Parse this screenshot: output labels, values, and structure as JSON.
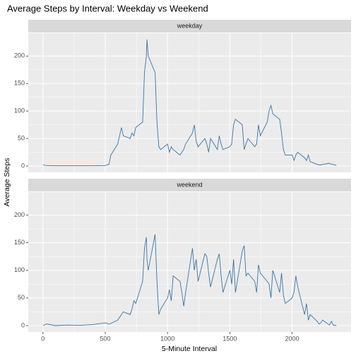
{
  "chart_data": {
    "type": "line",
    "title": "Average Steps by Interval: Weekday vs Weekend",
    "xlabel": "5-Minute Interval",
    "ylabel": "Average Steps",
    "x": [
      0,
      30,
      100,
      200,
      300,
      400,
      500,
      530,
      545,
      600,
      615,
      630,
      645,
      700,
      715,
      730,
      745,
      800,
      815,
      830,
      835,
      845,
      900,
      915,
      930,
      945,
      1000,
      1015,
      1030,
      1045,
      1100,
      1115,
      1130,
      1145,
      1200,
      1215,
      1230,
      1245,
      1300,
      1315,
      1330,
      1345,
      1400,
      1415,
      1430,
      1445,
      1500,
      1515,
      1530,
      1545,
      1600,
      1615,
      1630,
      1645,
      1700,
      1715,
      1730,
      1745,
      1800,
      1815,
      1830,
      1845,
      1900,
      1915,
      1930,
      1945,
      2000,
      2015,
      2030,
      2045,
      2100,
      2115,
      2130,
      2145,
      2200,
      2215,
      2230,
      2245,
      2300,
      2315,
      2330,
      2355
    ],
    "series": [
      {
        "name": "weekday",
        "color": "#3a75a8",
        "values": [
          2,
          1,
          0.5,
          0.5,
          0.5,
          0.5,
          1,
          3,
          20,
          40,
          55,
          70,
          55,
          50,
          60,
          55,
          70,
          80,
          170,
          200,
          230,
          200,
          170,
          80,
          35,
          30,
          40,
          25,
          35,
          30,
          20,
          25,
          30,
          40,
          60,
          75,
          45,
          35,
          50,
          40,
          25,
          50,
          30,
          55,
          40,
          30,
          35,
          40,
          75,
          85,
          75,
          30,
          40,
          50,
          35,
          40,
          75,
          55,
          80,
          100,
          110,
          95,
          85,
          60,
          30,
          20,
          20,
          10,
          20,
          25,
          15,
          10,
          20,
          8,
          3,
          2,
          2,
          3,
          5,
          3,
          3,
          1
        ]
      },
      {
        "name": "weekend",
        "color": "#3a75a8",
        "values": [
          0,
          3,
          0,
          1,
          0.5,
          2,
          5,
          3,
          4,
          10,
          15,
          20,
          25,
          20,
          30,
          45,
          40,
          80,
          140,
          160,
          120,
          100,
          165,
          80,
          20,
          30,
          50,
          65,
          45,
          90,
          80,
          60,
          35,
          60,
          140,
          100,
          120,
          80,
          130,
          125,
          95,
          70,
          120,
          130,
          90,
          60,
          100,
          75,
          120,
          60,
          135,
          145,
          90,
          95,
          80,
          60,
          110,
          95,
          80,
          75,
          50,
          100,
          60,
          95,
          55,
          40,
          50,
          60,
          90,
          70,
          20,
          40,
          10,
          20,
          8,
          3,
          5,
          10,
          1,
          8,
          1,
          0
        ]
      }
    ],
    "xlim": [
      -118,
      2473
    ],
    "ylim": [
      -11.5,
      241.5
    ],
    "xticks": [
      0,
      500,
      1000,
      1500,
      2000
    ],
    "yticks": [
      0,
      50,
      100,
      150,
      200
    ],
    "grid": true
  }
}
